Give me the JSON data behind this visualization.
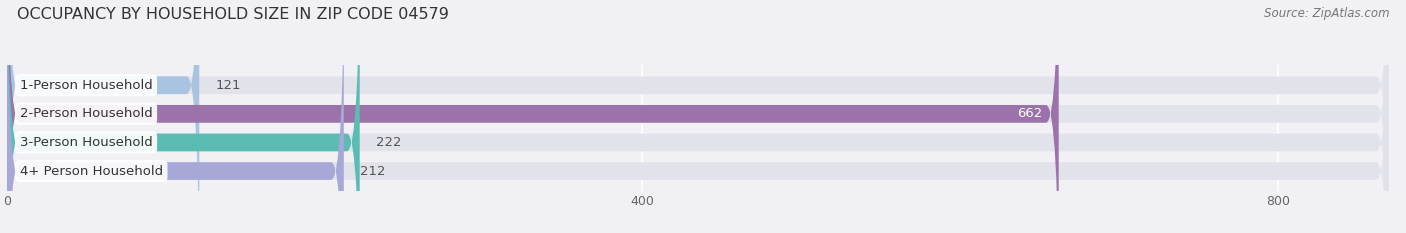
{
  "title": "OCCUPANCY BY HOUSEHOLD SIZE IN ZIP CODE 04579",
  "source": "Source: ZipAtlas.com",
  "categories": [
    "1-Person Household",
    "2-Person Household",
    "3-Person Household",
    "4+ Person Household"
  ],
  "values": [
    121,
    662,
    222,
    212
  ],
  "bar_colors": [
    "#a8c4e0",
    "#9b72aa",
    "#5bbcb4",
    "#a8a8d8"
  ],
  "label_colors": [
    "#333333",
    "#ffffff",
    "#333333",
    "#333333"
  ],
  "value_inside": [
    false,
    true,
    false,
    false
  ],
  "xlim_max": 870,
  "xticks": [
    0,
    400,
    800
  ],
  "background_color": "#f0f0f5",
  "bar_background_color": "#e2e2ea",
  "title_fontsize": 11.5,
  "source_fontsize": 8.5,
  "label_fontsize": 9.5,
  "value_fontsize": 9.5,
  "tick_fontsize": 9
}
